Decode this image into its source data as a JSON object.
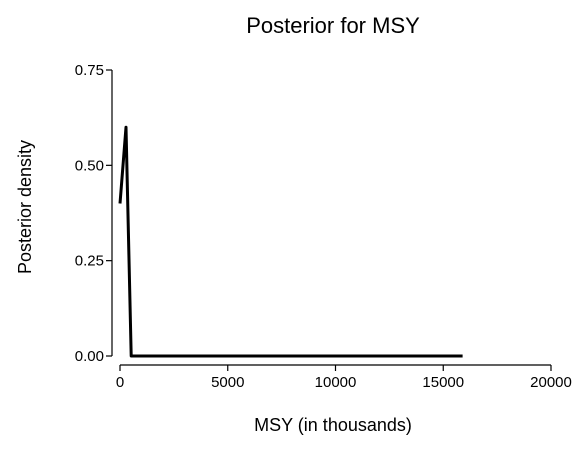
{
  "chart_data": {
    "type": "line",
    "title": "Posterior for MSY",
    "xlabel": "MSY (in thousands)",
    "ylabel": "Posterior density",
    "xlim": [
      0,
      20000
    ],
    "ylim": [
      0,
      0.75
    ],
    "xticks": [
      0,
      5000,
      10000,
      15000,
      20000
    ],
    "xtick_labels": [
      "0",
      "5000",
      "10000",
      "15000",
      "20000"
    ],
    "yticks": [
      0,
      0.25,
      0.5,
      0.75
    ],
    "ytick_labels": [
      "0.00",
      "0.25",
      "0.50",
      "0.75"
    ],
    "grid": false,
    "line_color": "#000000",
    "series": [
      {
        "x": [
          0,
          280,
          520,
          800,
          2000,
          5000,
          10000,
          15900
        ],
        "y": [
          0.4,
          0.6,
          0.0,
          0.0,
          0.0,
          0.0,
          0.0,
          0.0
        ]
      }
    ]
  }
}
